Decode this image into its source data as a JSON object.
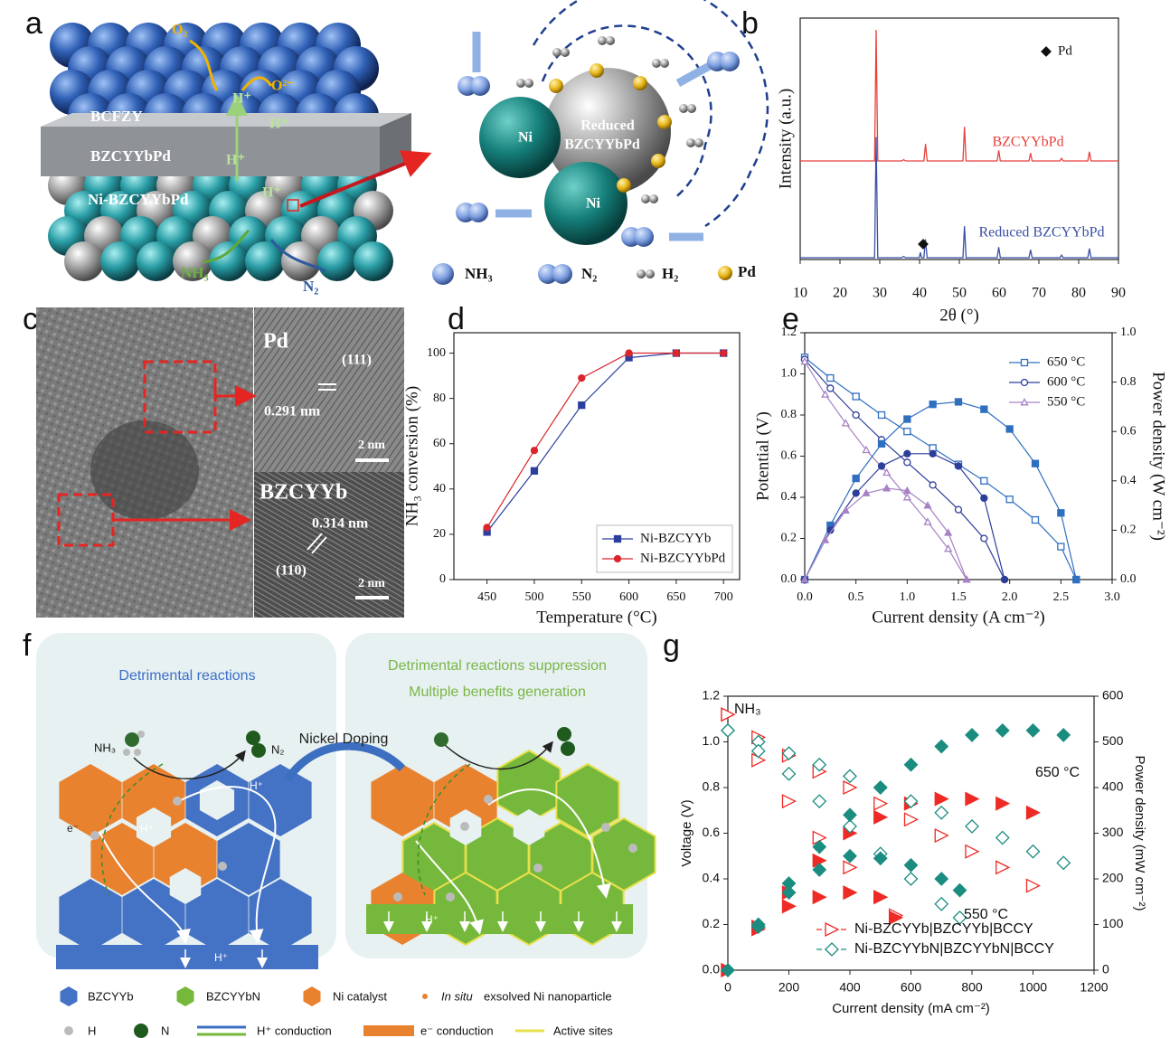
{
  "panel_labels": [
    "a",
    "b",
    "c",
    "d",
    "e",
    "f",
    "g"
  ],
  "panel_a": {
    "layers": [
      "BCFZY",
      "BZCYYbPd",
      "Ni-BZCYYbPd"
    ],
    "species": {
      "o2": "O₂",
      "o2_ion": "O²⁻",
      "proton": "H⁺",
      "nh3": "NH₃",
      "n2": "N₂"
    },
    "particles": [
      "Ni",
      "Ni"
    ],
    "center_label": [
      "Reduced",
      "BZCYYbPd"
    ],
    "legend": [
      "NH₃",
      "N₂",
      "H₂",
      "Pd"
    ]
  },
  "panel_c": {
    "insets": [
      {
        "title": "Pd",
        "plane": "(111)",
        "spacing": "0.291 nm",
        "scale": "2 nm"
      },
      {
        "title": "BZCYYb",
        "plane": "(110)",
        "spacing": "0.314 nm",
        "scale": "2 nm"
      }
    ]
  },
  "panel_f": {
    "left_title": "Detrimental reactions",
    "right_title": [
      "Detrimental reactions suppression",
      "Multiple benefits generation"
    ],
    "arrow_label": "Nickel Doping",
    "labels": {
      "nh3": "NH₃",
      "n2": "N₂",
      "proton": "H⁺",
      "electron": "e⁻"
    },
    "legend": [
      {
        "label": "BZCYYb"
      },
      {
        "label": "BZCYYbN"
      },
      {
        "label": "Ni catalyst"
      },
      {
        "label_italic": "In situ",
        "label": "exsolved Ni nanoparticle"
      },
      {
        "label": "H"
      },
      {
        "label": "N"
      },
      {
        "label": "H⁺ conduction"
      },
      {
        "label": "e⁻ conduction"
      },
      {
        "label": "Active sites"
      }
    ]
  },
  "chart_data": [
    {
      "type": "line",
      "x": [
        10,
        20,
        28.7,
        29.1,
        29.5,
        35.5,
        36,
        36.5,
        39.9,
        40.2,
        40.5,
        41.1,
        41.5,
        41.9,
        50.9,
        51.3,
        51.7,
        59.5,
        59.9,
        60.3,
        67.5,
        67.9,
        68.3,
        75.3,
        75.7,
        76.1,
        82.3,
        82.7,
        83.1,
        90
      ],
      "series": [
        {
          "name": "BZCYYbPd",
          "color": "#e8413c",
          "values": [
            0,
            0,
            0,
            100,
            0,
            0,
            1,
            0,
            0,
            0,
            0,
            0,
            13,
            0,
            0,
            26,
            0,
            0,
            8,
            0,
            0,
            6,
            0,
            0,
            2,
            0,
            0,
            7,
            0,
            0
          ]
        },
        {
          "name": "Reduced BZCYYbPd",
          "color": "#3a4fa5",
          "values": [
            0,
            0,
            0,
            92,
            0,
            0,
            1,
            0,
            0,
            4,
            0,
            0,
            14,
            0,
            0,
            24,
            0,
            0,
            8,
            0,
            0,
            6,
            0,
            0,
            2,
            0,
            0,
            7,
            0,
            0
          ]
        }
      ],
      "xlim": [
        10,
        90
      ],
      "xticks": [
        10,
        20,
        30,
        40,
        50,
        60,
        70,
        80,
        90
      ],
      "xlabel": "2θ (°)",
      "ylabel": "Intensity (a.u.)",
      "annotations": [
        "Pd"
      ],
      "lines": true
    },
    {
      "type": "line",
      "x": [
        450,
        500,
        550,
        600,
        650,
        700
      ],
      "series": [
        {
          "name": "Ni-BZCYYb",
          "color": "#2c3f9e",
          "marker": "square",
          "filled": true,
          "values": [
            21,
            48,
            77,
            98,
            100,
            100
          ]
        },
        {
          "name": "Ni-BZCYYbPd",
          "color": "#d9262c",
          "marker": "circle",
          "filled": true,
          "values": [
            23,
            57,
            89,
            100,
            100,
            100
          ]
        }
      ],
      "xlim": [
        415,
        717
      ],
      "ylim": [
        0,
        109
      ],
      "xticks": [
        450,
        500,
        550,
        600,
        650,
        700
      ],
      "yticks": [
        0,
        20,
        40,
        60,
        80,
        100
      ],
      "xlabel": "Temperature (°C)",
      "ylabel": "NH₃ conversion (%)",
      "legend": "lower right",
      "lines": true
    },
    {
      "type": "line",
      "series": [
        {
          "name": "650 °C",
          "color": "#2f6fc0",
          "marker": "square",
          "filled": false,
          "x": [
            0,
            0.25,
            0.5,
            0.75,
            1,
            1.25,
            1.5,
            1.75,
            2,
            2.25,
            2.5,
            2.65
          ],
          "values": [
            1.08,
            0.98,
            0.89,
            0.8,
            0.72,
            0.64,
            0.56,
            0.48,
            0.39,
            0.29,
            0.16,
            0
          ]
        },
        {
          "name": "600 °C",
          "color": "#2d3d9a",
          "marker": "circle",
          "filled": false,
          "x": [
            0,
            0.25,
            0.5,
            0.75,
            1,
            1.25,
            1.5,
            1.75,
            1.95
          ],
          "values": [
            1.07,
            0.93,
            0.8,
            0.68,
            0.57,
            0.46,
            0.34,
            0.2,
            0
          ]
        },
        {
          "name": "550 °C",
          "color": "#a682c5",
          "marker": "triangle",
          "filled": false,
          "x": [
            0,
            0.2,
            0.4,
            0.6,
            0.8,
            1,
            1.2,
            1.4,
            1.58
          ],
          "values": [
            1.06,
            0.9,
            0.76,
            0.63,
            0.52,
            0.4,
            0.28,
            0.15,
            0
          ]
        },
        {
          "color": "#2f6fc0",
          "marker": "square",
          "filled": true,
          "axis": "y2",
          "x": [
            0,
            0.25,
            0.5,
            0.75,
            1,
            1.25,
            1.5,
            1.75,
            2,
            2.25,
            2.5,
            2.65
          ],
          "values": [
            0,
            0.22,
            0.41,
            0.55,
            0.65,
            0.71,
            0.72,
            0.69,
            0.61,
            0.47,
            0.27,
            0
          ]
        },
        {
          "color": "#2d3d9a",
          "marker": "circle",
          "filled": true,
          "axis": "y2",
          "x": [
            0,
            0.25,
            0.5,
            0.75,
            1,
            1.25,
            1.5,
            1.75,
            1.95
          ],
          "values": [
            0,
            0.2,
            0.35,
            0.46,
            0.51,
            0.51,
            0.46,
            0.33,
            0
          ]
        },
        {
          "color": "#a682c5",
          "marker": "triangle",
          "filled": true,
          "axis": "y2",
          "x": [
            0,
            0.2,
            0.4,
            0.6,
            0.8,
            1,
            1.2,
            1.4,
            1.58
          ],
          "values": [
            0,
            0.16,
            0.28,
            0.35,
            0.37,
            0.36,
            0.3,
            0.19,
            0
          ]
        }
      ],
      "xlim": [
        0,
        3
      ],
      "ylim": [
        0,
        1.2
      ],
      "y2lim": [
        0,
        1
      ],
      "xticks": [
        {
          "value": 0,
          "label": "0.0"
        },
        0.5,
        {
          "value": 1,
          "label": "1.0"
        },
        1.5,
        {
          "value": 2,
          "label": "2.0"
        },
        2.5,
        {
          "value": 3,
          "label": "3.0"
        }
      ],
      "yticks": [
        {
          "value": 0,
          "label": "0.0"
        },
        0.2,
        0.4,
        0.6,
        0.8,
        {
          "value": 1,
          "label": "1.0"
        },
        1.2
      ],
      "y2ticks": [
        {
          "value": 0,
          "label": "0.0"
        },
        0.2,
        0.4,
        0.6,
        0.8,
        {
          "value": 1,
          "label": "1.0"
        }
      ],
      "xlabel": "Current density (A cm⁻²)",
      "ylabel": "Potential (V)",
      "y2label": "Power density (W cm⁻²)",
      "legend": "upper right",
      "lines": true
    },
    {
      "type": "line",
      "series": [
        {
          "name": "Ni-BZCYYb|BZCYYb|BCCY",
          "color": "#ee2a24",
          "marker": "triangle-right",
          "filled": false,
          "x": [
            0,
            100,
            200,
            300,
            400,
            500,
            600,
            700,
            800,
            900,
            1000
          ],
          "values": [
            1.12,
            1.02,
            0.94,
            0.87,
            0.8,
            0.73,
            0.66,
            0.59,
            0.52,
            0.45,
            0.37
          ]
        },
        {
          "color": "#ee2a24",
          "marker": "triangle-right",
          "filled": false,
          "x": [
            0,
            100,
            200,
            300,
            400,
            500,
            550
          ],
          "values": [
            1.12,
            0.92,
            0.74,
            0.58,
            0.45,
            0.32,
            0.24
          ]
        },
        {
          "color": "#ee2a24",
          "marker": "triangle-right",
          "filled": true,
          "axis": "y2",
          "x": [
            0,
            100,
            200,
            300,
            400,
            500,
            600,
            700,
            800,
            900,
            1000
          ],
          "values": [
            0,
            95,
            170,
            240,
            300,
            335,
            365,
            375,
            375,
            365,
            345
          ]
        },
        {
          "color": "#ee2a24",
          "marker": "triangle-right",
          "filled": true,
          "axis": "y2",
          "x": [
            0,
            100,
            200,
            300,
            400,
            500,
            550
          ],
          "values": [
            0,
            90,
            140,
            160,
            170,
            160,
            115
          ]
        },
        {
          "name": "Ni-BZCYYbN|BZCYYbN|BCCY",
          "color": "#1a8c80",
          "marker": "diamond",
          "filled": false,
          "x": [
            0,
            100,
            200,
            300,
            400,
            500,
            600,
            700,
            800,
            900,
            1000,
            1100
          ],
          "values": [
            1.05,
            1,
            0.95,
            0.9,
            0.85,
            0.8,
            0.74,
            0.69,
            0.63,
            0.58,
            0.52,
            0.47
          ]
        },
        {
          "color": "#1a8c80",
          "marker": "diamond",
          "filled": false,
          "x": [
            0,
            100,
            200,
            300,
            400,
            500,
            600,
            700,
            760
          ],
          "values": [
            1.05,
            0.96,
            0.86,
            0.74,
            0.63,
            0.51,
            0.4,
            0.29,
            0.23
          ]
        },
        {
          "color": "#1a8c80",
          "marker": "diamond",
          "filled": true,
          "axis": "y2",
          "x": [
            0,
            100,
            200,
            300,
            400,
            500,
            600,
            700,
            800,
            900,
            1000,
            1100
          ],
          "values": [
            0,
            100,
            190,
            270,
            340,
            400,
            450,
            490,
            515,
            525,
            525,
            515
          ]
        },
        {
          "color": "#1a8c80",
          "marker": "diamond",
          "filled": true,
          "axis": "y2",
          "x": [
            0,
            100,
            200,
            300,
            400,
            500,
            600,
            700,
            760
          ],
          "values": [
            0,
            95,
            170,
            220,
            250,
            245,
            230,
            200,
            175
          ]
        }
      ],
      "xlim": [
        0,
        1200
      ],
      "ylim": [
        0,
        1.2
      ],
      "y2lim": [
        0,
        600
      ],
      "xticks": [
        0,
        200,
        400,
        600,
        800,
        1000,
        1200
      ],
      "yticks": [
        {
          "value": 0,
          "label": "0.0"
        },
        0.2,
        0.4,
        0.6,
        0.8,
        {
          "value": 1,
          "label": "1.0"
        },
        1.2
      ],
      "y2ticks": [
        0,
        100,
        200,
        300,
        400,
        500,
        600
      ],
      "xlabel": "Current density (mA cm⁻²)",
      "ylabel": "Voltage (V)",
      "y2label": "Power density (mW cm⁻²)",
      "annotations": [
        "NH₃",
        "650 °C",
        "550 °C"
      ],
      "legend": "lower right",
      "lines": false
    }
  ]
}
